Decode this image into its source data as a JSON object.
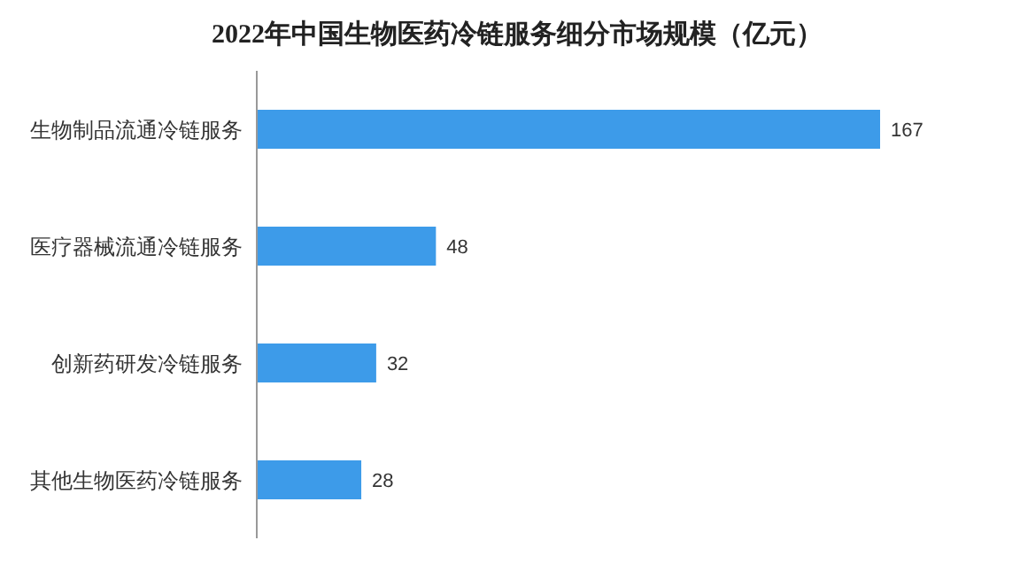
{
  "chart_data": {
    "type": "bar",
    "orientation": "horizontal",
    "title": "2022年中国生物医药冷链服务细分市场规模（亿元）",
    "categories": [
      "生物制品流通冷链服务",
      "医疗器械流通冷链服务",
      "创新药研发冷链服务",
      "其他生物医药冷链服务"
    ],
    "values": [
      167,
      48,
      32,
      28
    ],
    "color": "#3d9be9",
    "data_labels": true
  }
}
